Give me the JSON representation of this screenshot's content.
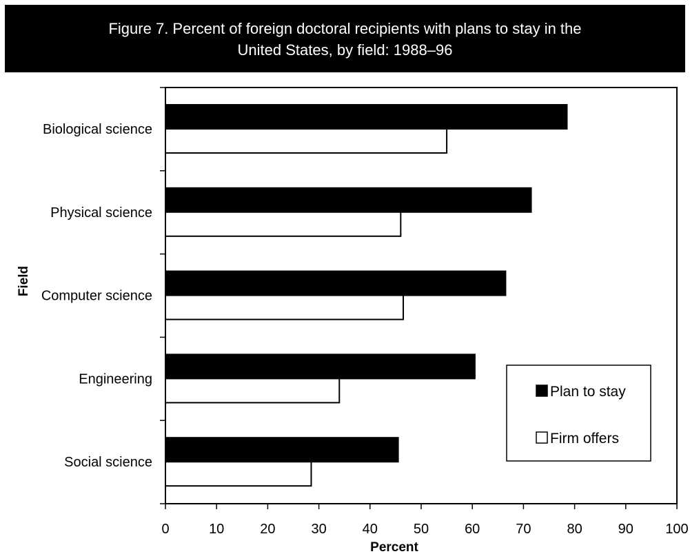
{
  "figure": {
    "title_line1": "Figure 7. Percent of foreign doctoral recipients with plans to stay in the",
    "title_line2": "United States, by field: 1988–96"
  },
  "chart_data": {
    "type": "bar",
    "orientation": "horizontal",
    "categories": [
      "Biological science",
      "Physical science",
      "Computer science",
      "Engineering",
      "Social science"
    ],
    "series": [
      {
        "name": "Plan to stay",
        "color": "#000000",
        "values": [
          78.5,
          71.5,
          66.5,
          60.5,
          45.5
        ]
      },
      {
        "name": "Firm offers",
        "color": "#ffffff",
        "values": [
          55,
          46,
          46.5,
          34,
          28.5
        ]
      }
    ],
    "xlabel": "Percent",
    "ylabel": "Field",
    "xlim": [
      0,
      100
    ],
    "xticks": [
      "0",
      "10",
      "20",
      "30",
      "40",
      "50",
      "60",
      "70",
      "80",
      "90",
      "100"
    ],
    "grid": false,
    "legend_position": "bottom-right"
  }
}
